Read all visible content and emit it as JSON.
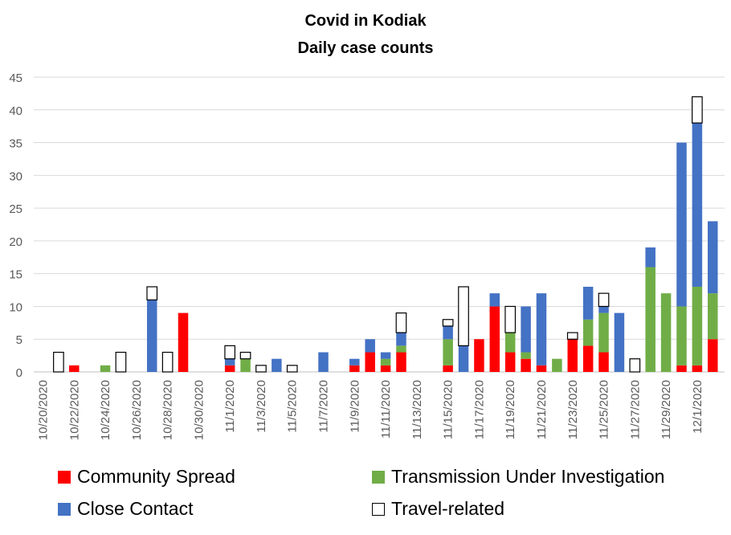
{
  "chart_data": {
    "type": "bar",
    "stacked": true,
    "title": "Covid in Kodiak",
    "subtitle": "Daily case counts",
    "xlabel": "",
    "ylabel": "",
    "ylim": [
      0,
      45
    ],
    "yticks": [
      0,
      5,
      10,
      15,
      20,
      25,
      30,
      35,
      40,
      45
    ],
    "grid": true,
    "legend_position": "bottom",
    "tick_labels": [
      "10/20/2020",
      "10/22/2020",
      "10/24/2020",
      "10/26/2020",
      "10/28/2020",
      "10/30/2020",
      "11/1/2020",
      "11/3/2020",
      "11/5/2020",
      "11/7/2020",
      "11/9/2020",
      "11/11/2020",
      "11/13/2020",
      "11/15/2020",
      "11/17/2020",
      "11/19/2020",
      "11/21/2020",
      "11/23/2020",
      "11/25/2020",
      "11/27/2020",
      "11/29/2020",
      "12/1/2020"
    ],
    "categories": [
      "10/20/2020",
      "10/21/2020",
      "10/22/2020",
      "10/23/2020",
      "10/24/2020",
      "10/25/2020",
      "10/26/2020",
      "10/27/2020",
      "10/28/2020",
      "10/29/2020",
      "10/30/2020",
      "10/31/2020",
      "11/1/2020",
      "11/2/2020",
      "11/3/2020",
      "11/4/2020",
      "11/5/2020",
      "11/6/2020",
      "11/7/2020",
      "11/8/2020",
      "11/9/2020",
      "11/10/2020",
      "11/11/2020",
      "11/12/2020",
      "11/13/2020",
      "11/14/2020",
      "11/15/2020",
      "11/16/2020",
      "11/17/2020",
      "11/18/2020",
      "11/19/2020",
      "11/20/2020",
      "11/21/2020",
      "11/22/2020",
      "11/23/2020",
      "11/24/2020",
      "11/25/2020",
      "11/26/2020",
      "11/27/2020",
      "11/28/2020",
      "11/29/2020",
      "11/30/2020",
      "12/1/2020",
      "12/2/2020"
    ],
    "series": [
      {
        "name": "Community Spread",
        "color": "#ff0000",
        "values": [
          0,
          0,
          1,
          0,
          0,
          0,
          0,
          0,
          0,
          9,
          0,
          0,
          1,
          0,
          0,
          0,
          0,
          0,
          0,
          0,
          1,
          3,
          1,
          3,
          0,
          0,
          1,
          0,
          5,
          10,
          3,
          2,
          1,
          0,
          5,
          4,
          3,
          0,
          0,
          0,
          0,
          1,
          1,
          5
        ]
      },
      {
        "name": "Transmission Under Investigation",
        "color": "#70ad47",
        "values": [
          0,
          0,
          0,
          0,
          1,
          0,
          0,
          0,
          0,
          0,
          0,
          0,
          0,
          2,
          0,
          0,
          0,
          0,
          0,
          0,
          0,
          0,
          1,
          1,
          0,
          0,
          4,
          0,
          0,
          0,
          3,
          1,
          0,
          2,
          0,
          4,
          6,
          0,
          0,
          16,
          12,
          9,
          12,
          7
        ]
      },
      {
        "name": "Close Contact",
        "color": "#4472c4",
        "values": [
          0,
          0,
          0,
          0,
          0,
          0,
          0,
          11,
          0,
          0,
          0,
          0,
          1,
          0,
          0,
          2,
          0,
          0,
          3,
          0,
          1,
          2,
          1,
          2,
          0,
          0,
          2,
          4,
          0,
          2,
          0,
          7,
          11,
          0,
          0,
          5,
          1,
          9,
          0,
          3,
          0,
          25,
          25,
          11
        ]
      },
      {
        "name": "Travel-related",
        "color": "#ffffff",
        "values": [
          0,
          3,
          0,
          0,
          0,
          3,
          0,
          2,
          3,
          0,
          0,
          0,
          2,
          1,
          1,
          0,
          1,
          0,
          0,
          0,
          0,
          0,
          0,
          3,
          0,
          0,
          1,
          9,
          0,
          0,
          4,
          0,
          0,
          0,
          1,
          0,
          2,
          0,
          2,
          0,
          0,
          0,
          4,
          0
        ]
      }
    ]
  },
  "legend": {
    "community": "Community Spread",
    "tui": "Transmission Under Investigation",
    "close": "Close Contact",
    "travel": "Travel-related"
  }
}
